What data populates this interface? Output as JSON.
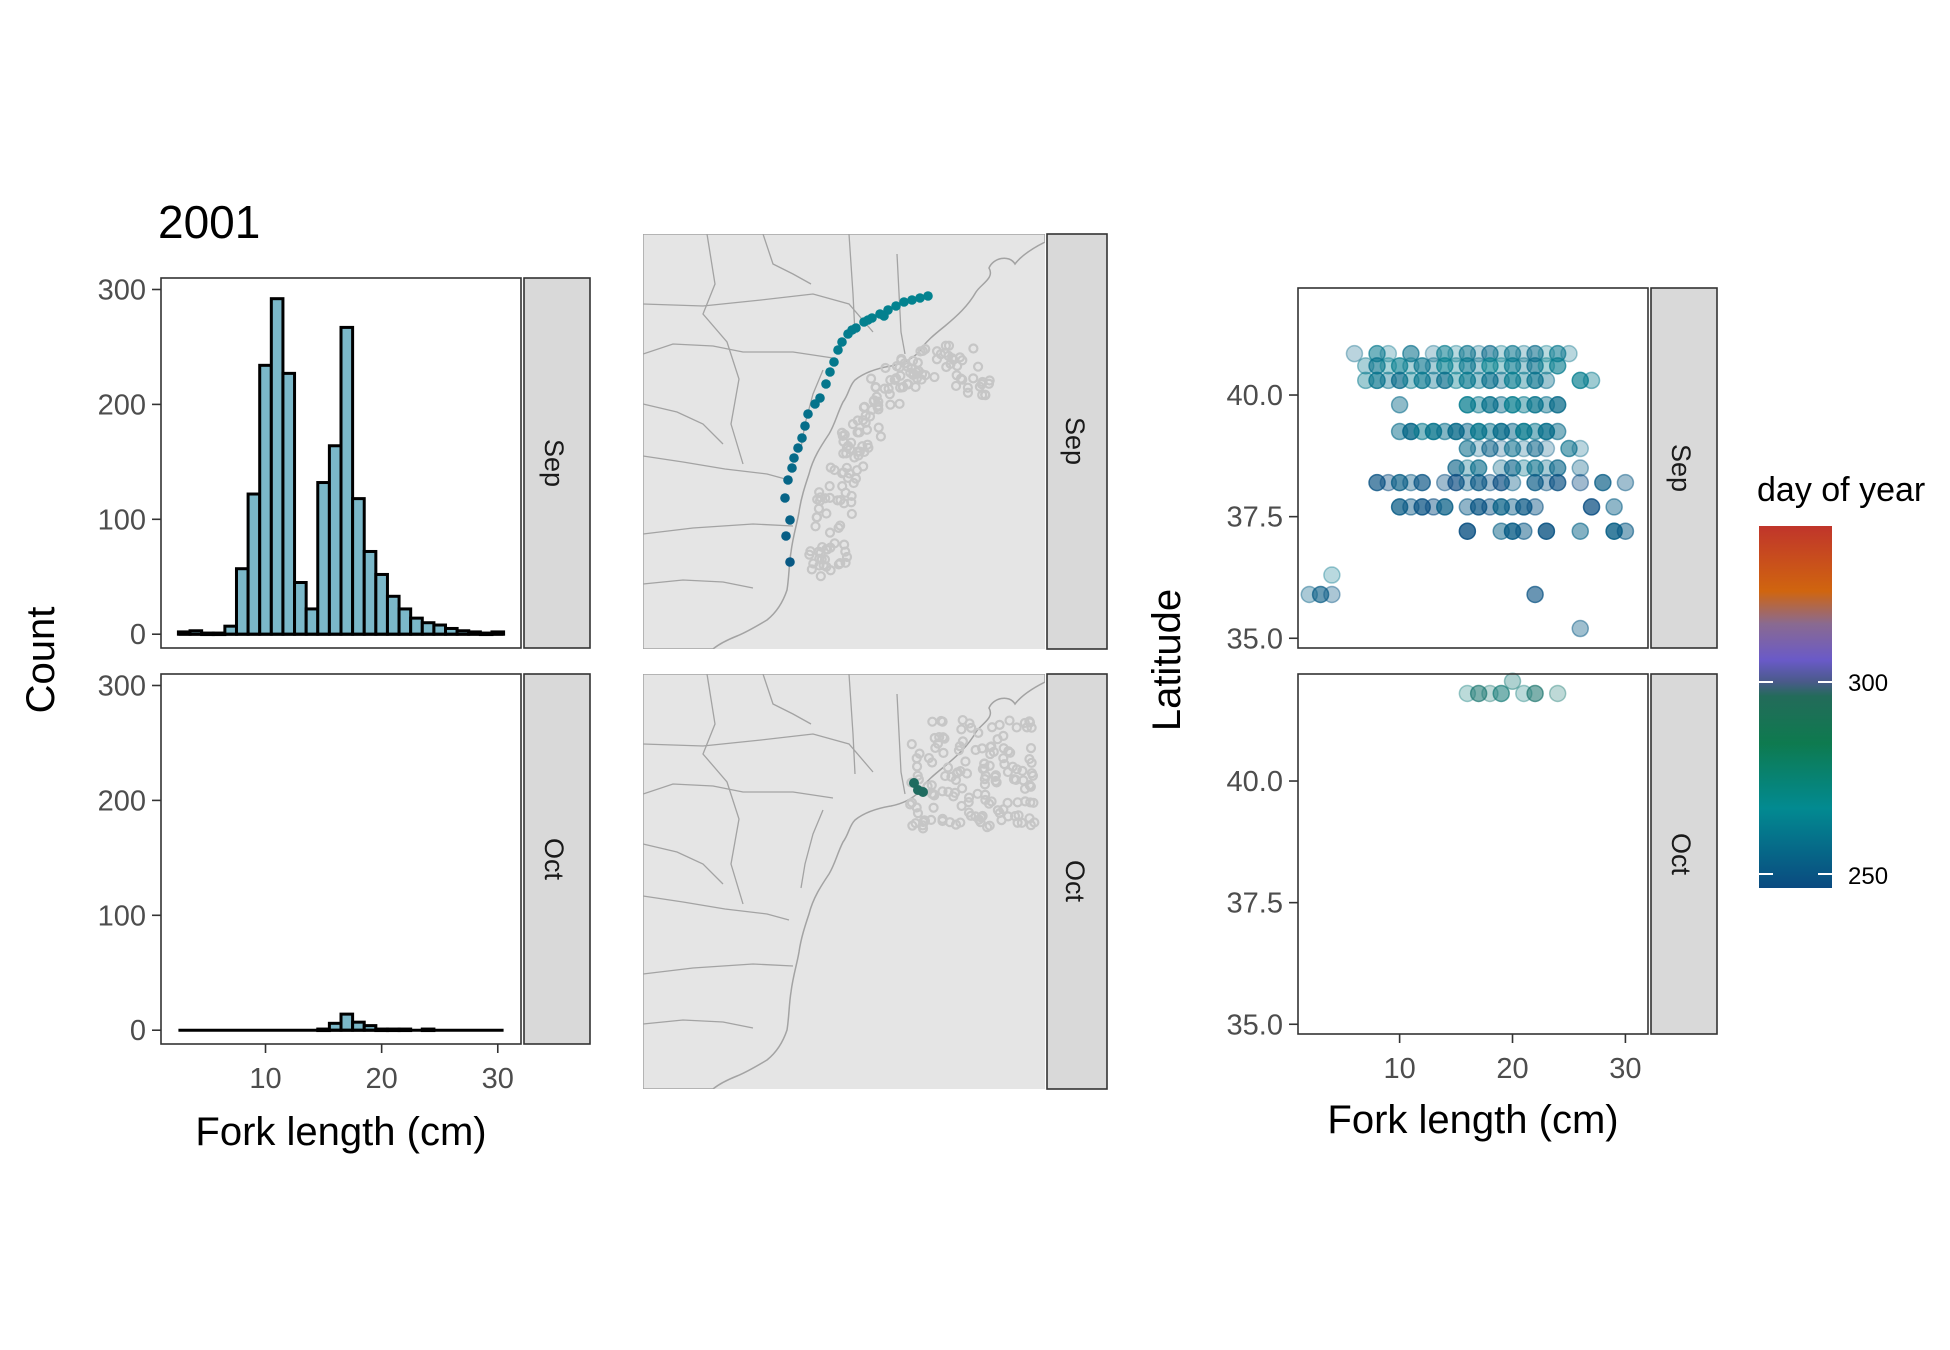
{
  "title": "2001",
  "colors": {
    "bar_fill": "#7bb8c9",
    "strip_fill": "#d9d9d9",
    "map_bg": "#e5e5e5",
    "day_250": "#0a4a80",
    "day_275": "#028a91",
    "day_300": "#1f6b5f",
    "day_high": "#c0352b"
  },
  "histogram": {
    "xlabel": "Fork length (cm)",
    "ylabel": "Count",
    "x_ticks": [
      "10",
      "20",
      "30"
    ],
    "y_ticks": [
      "0",
      "100",
      "200",
      "300"
    ]
  },
  "scatter": {
    "xlabel": "Fork length (cm)",
    "ylabel": "Latitude",
    "x_ticks": [
      "10",
      "20",
      "30"
    ],
    "y_ticks": [
      "35.0",
      "37.5",
      "40.0"
    ]
  },
  "facets": [
    "Sep",
    "Oct"
  ],
  "legend": {
    "title": "day of year",
    "labels": [
      "300",
      "250"
    ]
  },
  "chart_data": [
    {
      "type": "bar",
      "facet": "Sep",
      "xlabel": "Fork length (cm)",
      "ylabel": "Count",
      "xlim": [
        1,
        32
      ],
      "ylim": [
        -12,
        310
      ],
      "bin_width": 1,
      "x": [
        3,
        4,
        5,
        6,
        7,
        8,
        9,
        10,
        11,
        12,
        13,
        14,
        15,
        16,
        17,
        18,
        19,
        20,
        21,
        22,
        23,
        24,
        25,
        26,
        27,
        28,
        29,
        30
      ],
      "values": [
        2,
        3,
        1,
        1,
        7,
        57,
        122,
        234,
        292,
        227,
        45,
        22,
        132,
        164,
        267,
        118,
        72,
        52,
        33,
        22,
        14,
        10,
        8,
        5,
        3,
        2,
        1,
        2
      ]
    },
    {
      "type": "bar",
      "facet": "Oct",
      "xlabel": "Fork length (cm)",
      "ylabel": "Count",
      "xlim": [
        1,
        32
      ],
      "ylim": [
        -12,
        310
      ],
      "bin_width": 1,
      "x": [
        15,
        16,
        17,
        18,
        19,
        20,
        21,
        22,
        24
      ],
      "values": [
        1,
        6,
        14,
        7,
        4,
        1,
        1,
        1,
        1
      ]
    },
    {
      "type": "scatter",
      "facet": "Sep",
      "xlabel": "Fork length (cm)",
      "ylabel": "Latitude",
      "xlim": [
        1,
        32
      ],
      "ylim": [
        34.8,
        42.2
      ],
      "rows": [
        {
          "lat": 40.85,
          "x": [
            6,
            8,
            9,
            11,
            13,
            14,
            15,
            16,
            17,
            18,
            19,
            20,
            21,
            22,
            23,
            24,
            25
          ],
          "day": 265
        },
        {
          "lat": 40.6,
          "x": [
            7,
            8,
            9,
            10,
            11,
            12,
            13,
            14,
            15,
            16,
            17,
            18,
            19,
            20,
            21,
            22,
            23,
            24
          ],
          "day": 268
        },
        {
          "lat": 40.3,
          "x": [
            7,
            8,
            9,
            10,
            11,
            12,
            13,
            14,
            15,
            16,
            17,
            18,
            19,
            20,
            21,
            22,
            23,
            26,
            27
          ],
          "day": 266
        },
        {
          "lat": 39.8,
          "x": [
            10,
            16,
            17,
            18,
            19,
            20,
            21,
            22,
            23,
            24
          ],
          "day": 266
        },
        {
          "lat": 39.25,
          "x": [
            10,
            11,
            12,
            13,
            14,
            15,
            16,
            17,
            18,
            19,
            20,
            21,
            22,
            23,
            24
          ],
          "day": 264
        },
        {
          "lat": 38.9,
          "x": [
            16,
            17,
            18,
            19,
            20,
            21,
            22,
            23,
            25,
            26
          ],
          "day": 260
        },
        {
          "lat": 38.5,
          "x": [
            15,
            16,
            17,
            19,
            20,
            21,
            22,
            23,
            24,
            26
          ],
          "day": 262
        },
        {
          "lat": 38.2,
          "x": [
            8,
            9,
            10,
            11,
            12,
            14,
            15,
            16,
            17,
            18,
            19,
            20,
            22,
            23,
            24,
            26,
            28,
            30
          ],
          "day": 254
        },
        {
          "lat": 37.7,
          "x": [
            10,
            11,
            12,
            13,
            14,
            16,
            17,
            18,
            19,
            20,
            21,
            22,
            27,
            29
          ],
          "day": 255
        },
        {
          "lat": 37.2,
          "x": [
            16,
            19,
            20,
            21,
            23,
            26,
            29,
            30
          ],
          "day": 256
        },
        {
          "lat": 36.3,
          "x": [
            4
          ],
          "day": 268
        },
        {
          "lat": 35.9,
          "x": [
            2,
            3,
            4,
            22
          ],
          "day": 257
        },
        {
          "lat": 35.2,
          "x": [
            26
          ],
          "day": 260
        }
      ]
    },
    {
      "type": "scatter",
      "facet": "Oct",
      "xlabel": "Fork length (cm)",
      "ylabel": "Latitude",
      "xlim": [
        1,
        32
      ],
      "ylim": [
        34.8,
        42.2
      ],
      "rows": [
        {
          "lat": 41.8,
          "x": [
            16,
            17,
            18,
            19,
            21,
            22,
            24
          ],
          "day": 290
        },
        {
          "lat": 42.05,
          "x": [
            20
          ],
          "day": 290
        }
      ]
    }
  ]
}
